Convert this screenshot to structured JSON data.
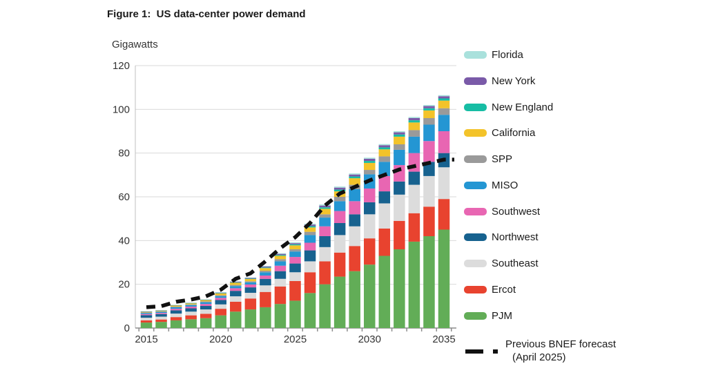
{
  "title": "Figure 1:  US data-center power demand",
  "y_axis_label": "Gigawatts",
  "chart_data": {
    "type": "bar",
    "stacked": true,
    "title": "Figure 1:  US data-center power demand",
    "ylabel": "Gigawatts",
    "ylim": [
      0,
      120
    ],
    "y_ticks": [
      0,
      20,
      40,
      60,
      80,
      100,
      120
    ],
    "x_tick_labels": [
      "2015",
      "2020",
      "2025",
      "2030",
      "2035"
    ],
    "grid": "horizontal",
    "legend_position": "right",
    "categories": [
      2015,
      2016,
      2017,
      2018,
      2019,
      2020,
      2021,
      2022,
      2023,
      2024,
      2025,
      2026,
      2027,
      2028,
      2029,
      2030,
      2031,
      2032,
      2033,
      2034,
      2035
    ],
    "series": [
      {
        "name": "PJM",
        "color": "#62ad57",
        "values": [
          2.5,
          2.8,
          3.5,
          4,
          4.5,
          5.8,
          7.5,
          8.5,
          9.5,
          11,
          12.5,
          16,
          20,
          23.5,
          26,
          29,
          33,
          36,
          39.5,
          42,
          45
        ]
      },
      {
        "name": "Ercot",
        "color": "#e8432f",
        "values": [
          1,
          1.1,
          1.5,
          1.8,
          2,
          3,
          4.5,
          5,
          7,
          8,
          9,
          9.5,
          10.5,
          11,
          11.5,
          12,
          12.5,
          13,
          13,
          13.5,
          14
        ]
      },
      {
        "name": "Southeast",
        "color": "#dcdcdc",
        "values": [
          1.2,
          1.3,
          1.6,
          1.7,
          2,
          2,
          2.5,
          2.6,
          3,
          3.5,
          4,
          5,
          6.5,
          8,
          9,
          11,
          11.5,
          12,
          13,
          14,
          14.5
        ]
      },
      {
        "name": "Northwest",
        "color": "#17628f",
        "values": [
          1.2,
          1.2,
          1.5,
          1.5,
          1.6,
          2,
          2.5,
          2.5,
          3,
          3.5,
          4,
          5,
          5,
          5.5,
          5.5,
          5.5,
          5.5,
          6,
          6,
          6.5,
          6.5
        ]
      },
      {
        "name": "Southwest",
        "color": "#e866b2",
        "values": [
          0.5,
          0.5,
          0.7,
          0.8,
          0.9,
          1,
          1.2,
          1.3,
          1.5,
          2.5,
          3,
          3.5,
          4.5,
          5.5,
          6,
          6.3,
          7,
          7.5,
          8.5,
          9.5,
          10
        ]
      },
      {
        "name": "MISO",
        "color": "#2496d3",
        "values": [
          0.5,
          0.5,
          0.7,
          0.7,
          0.8,
          0.8,
          1,
          1,
          1.5,
          2,
          2.5,
          3.5,
          4,
          4.5,
          5.5,
          6.5,
          6.5,
          7,
          7.5,
          7.5,
          7.5
        ]
      },
      {
        "name": "SPP",
        "color": "#9a9a9a",
        "values": [
          0.2,
          0.2,
          0.3,
          0.3,
          0.4,
          0.4,
          0.5,
          0.5,
          0.7,
          1,
          1,
          1.5,
          1.5,
          2,
          2,
          2,
          2.5,
          2.5,
          3,
          3,
          3
        ]
      },
      {
        "name": "California",
        "color": "#f3c32a",
        "values": [
          0.3,
          0.3,
          0.5,
          0.5,
          0.6,
          0.8,
          1,
          1,
          1.2,
          1.5,
          1.8,
          2,
          2.5,
          2.5,
          3,
          3.2,
          3.2,
          3.5,
          3.5,
          3.5,
          3.5
        ]
      },
      {
        "name": "New England",
        "color": "#17bda4",
        "values": [
          0.1,
          0.1,
          0.1,
          0.1,
          0.1,
          0.2,
          0.2,
          0.2,
          0.3,
          0.4,
          0.5,
          0.6,
          0.7,
          0.8,
          0.8,
          0.9,
          0.9,
          1,
          1,
          1,
          1
        ]
      },
      {
        "name": "New York",
        "color": "#7a5aa8",
        "values": [
          0.1,
          0.1,
          0.1,
          0.1,
          0.1,
          0.2,
          0.3,
          0.3,
          0.4,
          0.5,
          0.5,
          0.7,
          0.8,
          0.9,
          0.9,
          1,
          1,
          1,
          1,
          1,
          1
        ]
      },
      {
        "name": "Florida",
        "color": "#a9e1dc",
        "values": [
          0.1,
          0.1,
          0.1,
          0.1,
          0.1,
          0.2,
          0.2,
          0.2,
          0.3,
          0.3,
          0.4,
          0.4,
          0.5,
          0.5,
          0.5,
          0.5,
          0.5,
          0.5,
          0.5,
          0.5,
          0.5
        ]
      }
    ],
    "line_series": {
      "name": "Previous BNEF forecast (April 2025)",
      "style": "dashed",
      "color": "#111111",
      "values": [
        9.5,
        10,
        12,
        13,
        14.5,
        17.5,
        22.5,
        25,
        30.5,
        36.5,
        41.5,
        48,
        56,
        61.5,
        64.5,
        67.5,
        70,
        72.5,
        74,
        75.5,
        77
      ]
    },
    "forecast_legend": {
      "line1": "Previous BNEF forecast",
      "line2": "(April 2025)"
    }
  }
}
